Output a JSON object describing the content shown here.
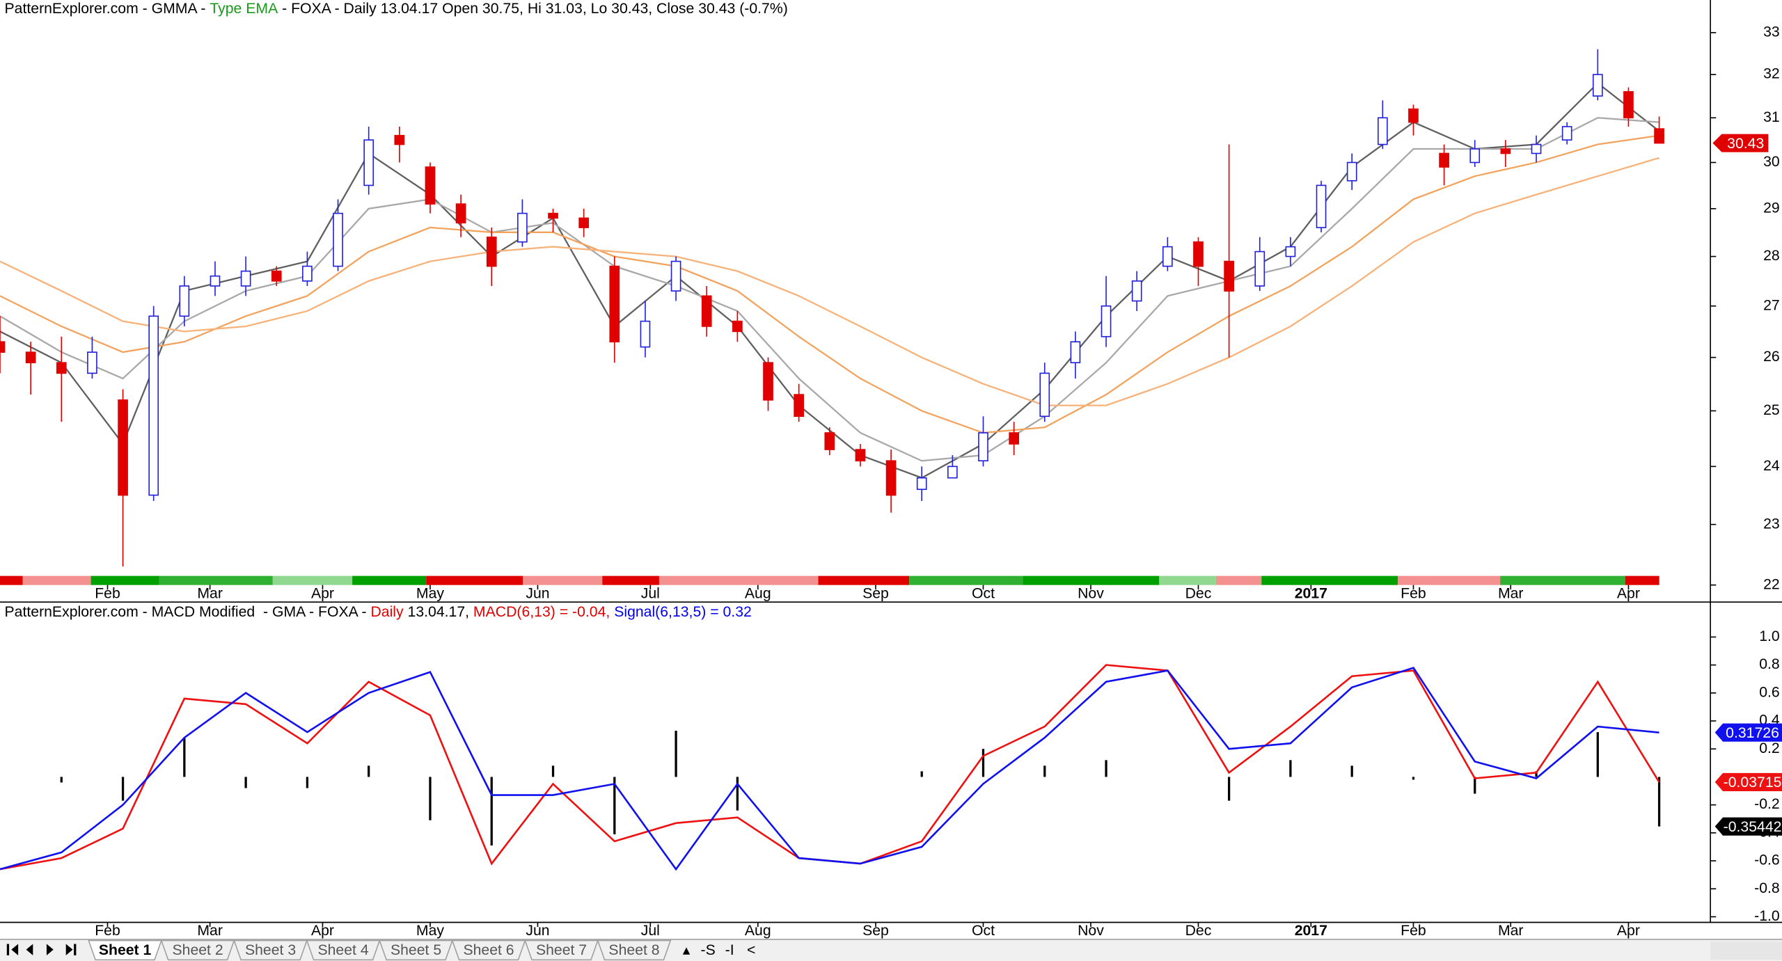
{
  "chart_data": [
    {
      "type": "candlestick",
      "title_segments": [
        {
          "text": "PatternExplorer.com - GMMA - ",
          "color": "#000000"
        },
        {
          "text": "Type EMA",
          "color": "#1a9a1a"
        },
        {
          "text": " - FOXA - Daily 13.04.17 Open 30.75, Hi 31.03, Lo 30.43, Close 30.43 (-0.7%)",
          "color": "#000000"
        }
      ],
      "x": [
        0,
        6,
        12,
        18,
        24,
        30,
        36,
        42,
        48,
        54,
        60,
        66,
        72,
        78,
        84,
        90,
        96,
        102,
        108,
        114,
        120,
        126,
        132,
        138,
        144,
        150,
        156,
        162,
        168,
        174,
        180,
        186,
        192,
        198,
        204,
        210,
        216,
        222,
        228,
        234,
        240,
        246,
        252,
        258,
        264,
        270,
        276,
        282,
        288,
        294,
        300,
        306,
        312,
        318,
        324
      ],
      "open": [
        26.3,
        26.1,
        25.9,
        25.7,
        25.2,
        23.5,
        26.8,
        27.4,
        27.4,
        27.7,
        27.5,
        27.8,
        29.5,
        30.6,
        29.9,
        29.1,
        28.4,
        28.3,
        28.9,
        28.8,
        27.8,
        26.2,
        27.3,
        27.2,
        26.7,
        25.9,
        25.3,
        24.6,
        24.3,
        24.1,
        23.6,
        23.8,
        24.1,
        24.6,
        24.9,
        25.9,
        26.4,
        27.1,
        27.8,
        28.3,
        27.9,
        27.4,
        28.0,
        28.6,
        29.6,
        30.4,
        31.2,
        30.2,
        30.0,
        30.3,
        30.2,
        30.5,
        31.5,
        31.6,
        30.75
      ],
      "high": [
        26.8,
        26.3,
        26.4,
        26.4,
        25.4,
        27.0,
        27.6,
        27.9,
        28.0,
        27.8,
        28.1,
        29.2,
        30.8,
        30.8,
        30.0,
        29.3,
        28.6,
        29.2,
        29.0,
        29.0,
        28.0,
        27.1,
        28.0,
        27.4,
        26.9,
        26.0,
        25.5,
        24.7,
        24.4,
        24.3,
        24.0,
        24.2,
        24.9,
        24.8,
        25.9,
        26.5,
        27.6,
        27.7,
        28.4,
        28.4,
        30.4,
        28.4,
        28.4,
        29.6,
        30.2,
        31.4,
        31.3,
        30.4,
        30.5,
        30.5,
        30.6,
        30.9,
        32.6,
        31.7,
        31.03
      ],
      "low": [
        25.7,
        25.3,
        24.8,
        25.6,
        22.3,
        23.4,
        26.6,
        27.2,
        27.2,
        27.4,
        27.4,
        27.7,
        29.3,
        30.0,
        28.9,
        28.4,
        27.4,
        28.2,
        28.5,
        28.4,
        25.9,
        26.0,
        27.1,
        26.4,
        26.3,
        25.0,
        24.8,
        24.2,
        24.0,
        23.2,
        23.4,
        23.8,
        24.0,
        24.2,
        24.8,
        25.6,
        26.2,
        26.9,
        27.7,
        27.4,
        26.0,
        27.3,
        27.8,
        28.5,
        29.4,
        30.3,
        30.6,
        29.5,
        29.9,
        29.9,
        30.0,
        30.4,
        31.4,
        30.8,
        30.43
      ],
      "close": [
        26.1,
        25.9,
        25.7,
        26.1,
        23.5,
        26.8,
        27.4,
        27.6,
        27.7,
        27.5,
        27.8,
        28.9,
        30.5,
        30.4,
        29.1,
        28.7,
        27.8,
        28.9,
        28.8,
        28.6,
        26.3,
        26.7,
        27.9,
        26.6,
        26.5,
        25.2,
        24.9,
        24.3,
        24.1,
        23.5,
        23.8,
        24.0,
        24.6,
        24.4,
        25.7,
        26.3,
        27.0,
        27.5,
        28.2,
        27.8,
        27.3,
        28.1,
        28.2,
        29.5,
        30.0,
        31.0,
        30.9,
        29.9,
        30.3,
        30.2,
        30.4,
        30.8,
        32.0,
        31.0,
        30.43
      ],
      "up_color": "#2222dd",
      "down_color": "#e00000",
      "lines": {
        "x": [
          0,
          12,
          24,
          36,
          48,
          60,
          72,
          84,
          96,
          108,
          120,
          132,
          144,
          156,
          168,
          180,
          192,
          204,
          216,
          228,
          240,
          252,
          264,
          276,
          288,
          300,
          312,
          324
        ],
        "series": [
          {
            "color": "#5f5f5f",
            "values": [
              26.5,
              25.9,
              24.4,
              27.3,
              27.6,
              27.9,
              30.2,
              29.3,
              28.0,
              28.8,
              26.6,
              27.6,
              26.6,
              25.1,
              24.2,
              23.8,
              24.4,
              25.4,
              26.8,
              28.0,
              27.5,
              28.2,
              29.9,
              30.9,
              30.3,
              30.4,
              31.8,
              30.7
            ]
          },
          {
            "color": "#a8a8a8",
            "values": [
              26.8,
              26.1,
              25.6,
              26.7,
              27.3,
              27.6,
              29.0,
              29.2,
              28.5,
              28.7,
              27.8,
              27.4,
              26.9,
              25.6,
              24.6,
              24.1,
              24.2,
              24.9,
              25.9,
              27.2,
              27.5,
              27.8,
              29.0,
              30.3,
              30.3,
              30.3,
              31.0,
              30.9
            ]
          },
          {
            "color": "#f2a35e",
            "values": [
              27.2,
              26.6,
              26.1,
              26.3,
              26.8,
              27.2,
              28.1,
              28.6,
              28.5,
              28.5,
              28.0,
              27.8,
              27.3,
              26.4,
              25.6,
              25.0,
              24.6,
              24.7,
              25.3,
              26.1,
              26.8,
              27.4,
              28.2,
              29.2,
              29.7,
              30.0,
              30.4,
              30.6
            ]
          },
          {
            "color": "#f7b27a",
            "values": [
              27.9,
              27.3,
              26.7,
              26.5,
              26.6,
              26.9,
              27.5,
              27.9,
              28.1,
              28.2,
              28.1,
              28.0,
              27.7,
              27.2,
              26.6,
              26.0,
              25.5,
              25.1,
              25.1,
              25.5,
              26.0,
              26.6,
              27.4,
              28.3,
              28.9,
              29.3,
              29.7,
              30.1
            ]
          }
        ]
      },
      "xlim": [
        0,
        334
      ],
      "xticks": [
        {
          "value": 21,
          "label": "Feb"
        },
        {
          "value": 41,
          "label": "Mar"
        },
        {
          "value": 63,
          "label": "Apr"
        },
        {
          "value": 84,
          "label": "May"
        },
        {
          "value": 105,
          "label": "Jun"
        },
        {
          "value": 127,
          "label": "Jul"
        },
        {
          "value": 148,
          "label": "Aug"
        },
        {
          "value": 171,
          "label": "Sep"
        },
        {
          "value": 192,
          "label": "Oct"
        },
        {
          "value": 213,
          "label": "Nov"
        },
        {
          "value": 234,
          "label": "Dec"
        },
        {
          "value": 256,
          "label": "2017"
        },
        {
          "value": 276,
          "label": "Feb"
        },
        {
          "value": 295,
          "label": "Mar"
        },
        {
          "value": 318,
          "label": "Apr"
        }
      ],
      "ylim": [
        22,
        33.8
      ],
      "yticks": [
        22,
        23,
        24,
        25,
        26,
        27,
        28,
        29,
        30,
        31,
        32,
        33
      ],
      "log_scale": true
    },
    {
      "type": "line",
      "title_segments": [
        {
          "text": "PatternExplorer.com - MACD Modified  - GMA - FOXA - ",
          "color": "#000000"
        },
        {
          "text": "Daily",
          "color": "#e00000"
        },
        {
          "text": " 13.04.17, ",
          "color": "#000000"
        },
        {
          "text": "MACD(6,13) = -0.04, ",
          "color": "#e00000"
        },
        {
          "text": "Signal(6,13,5) = 0.32",
          "color": "#0000ee"
        }
      ],
      "x": [
        0,
        12,
        24,
        36,
        48,
        60,
        72,
        84,
        96,
        108,
        120,
        132,
        144,
        156,
        168,
        180,
        192,
        204,
        216,
        228,
        240,
        252,
        264,
        276,
        288,
        300,
        312,
        324
      ],
      "series": [
        {
          "color": "#ee1111",
          "values": [
            -0.66,
            -0.58,
            -0.37,
            0.56,
            0.52,
            0.24,
            0.68,
            0.44,
            -0.62,
            -0.05,
            -0.46,
            -0.33,
            -0.29,
            -0.58,
            -0.62,
            -0.46,
            0.15,
            0.36,
            0.8,
            0.76,
            0.03,
            0.36,
            0.72,
            0.76,
            -0.01,
            0.03,
            0.68,
            -0.03715
          ]
        },
        {
          "color": "#1111ee",
          "values": [
            -0.66,
            -0.54,
            -0.2,
            0.28,
            0.6,
            0.32,
            0.6,
            0.75,
            -0.13,
            -0.13,
            -0.05,
            -0.66,
            -0.05,
            -0.58,
            -0.62,
            -0.5,
            -0.05,
            0.28,
            0.68,
            0.76,
            0.2,
            0.24,
            0.64,
            0.78,
            0.11,
            -0.01,
            0.36,
            0.31726
          ]
        }
      ],
      "histogram": {
        "color": "#000000",
        "values": [
          0,
          -0.04,
          -0.17,
          0.28,
          -0.08,
          -0.08,
          0.08,
          -0.31,
          -0.49,
          0.08,
          -0.41,
          0.33,
          -0.24,
          0,
          0,
          0.04,
          0.2,
          0.08,
          0.12,
          0,
          -0.17,
          0.12,
          0.08,
          -0.02,
          -0.12,
          0.04,
          0.32,
          -0.35442
        ]
      },
      "xlim": [
        0,
        334
      ],
      "xticks": [
        {
          "value": 21,
          "label": "Feb"
        },
        {
          "value": 41,
          "label": "Mar"
        },
        {
          "value": 63,
          "label": "Apr"
        },
        {
          "value": 84,
          "label": "May"
        },
        {
          "value": 105,
          "label": "Jun"
        },
        {
          "value": 127,
          "label": "Jul"
        },
        {
          "value": 148,
          "label": "Aug"
        },
        {
          "value": 171,
          "label": "Sep"
        },
        {
          "value": 192,
          "label": "Oct"
        },
        {
          "value": 213,
          "label": "Nov"
        },
        {
          "value": 234,
          "label": "Dec"
        },
        {
          "value": 256,
          "label": "2017"
        },
        {
          "value": 276,
          "label": "Feb"
        },
        {
          "value": 295,
          "label": "Mar"
        },
        {
          "value": 318,
          "label": "Apr"
        }
      ],
      "ylim": [
        -1.04,
        1.25
      ],
      "yticks": [
        {
          "value": 1,
          "label": "1.0"
        },
        0.8,
        0.6,
        0.4,
        0.2,
        -0.2,
        -0.4,
        -0.6,
        -0.8,
        {
          "value": -1,
          "label": "-1.0"
        }
      ]
    }
  ],
  "tabs": [
    "Sheet 1",
    "Sheet 2",
    "Sheet 3",
    "Sheet 4",
    "Sheet 5",
    "Sheet 6",
    "Sheet 7",
    "Sheet 8"
  ],
  "tab_controls": [
    "▴",
    "-S",
    "-I",
    "<"
  ]
}
